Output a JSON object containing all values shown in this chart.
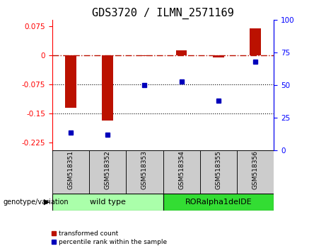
{
  "title": "GDS3720 / ILMN_2571169",
  "samples": [
    "GSM518351",
    "GSM518352",
    "GSM518353",
    "GSM518354",
    "GSM518355",
    "GSM518356"
  ],
  "red_values": [
    -0.135,
    -0.168,
    -0.002,
    0.013,
    -0.006,
    0.068
  ],
  "blue_values": [
    14,
    12,
    50,
    53,
    38,
    68
  ],
  "ylim_left": [
    -0.245,
    0.09
  ],
  "ylim_right": [
    0,
    100
  ],
  "yticks_left": [
    0.075,
    0,
    -0.075,
    -0.15,
    -0.225
  ],
  "yticks_right": [
    100,
    75,
    50,
    25,
    0
  ],
  "hlines": [
    -0.075,
    -0.15
  ],
  "zero_line": 0.0,
  "group1": {
    "label": "wild type",
    "color": "#AAFFAA",
    "n": 3
  },
  "group2": {
    "label": "RORalpha1delDE",
    "color": "#33DD33",
    "n": 3
  },
  "genotype_label": "genotype/variation",
  "legend_red": "transformed count",
  "legend_blue": "percentile rank within the sample",
  "bar_color": "#BB1100",
  "dot_color": "#0000BB",
  "bg_color": "#CCCCCC",
  "title_fontsize": 11,
  "tick_fontsize": 7.5,
  "label_fontsize": 6.5,
  "bar_width": 0.3
}
